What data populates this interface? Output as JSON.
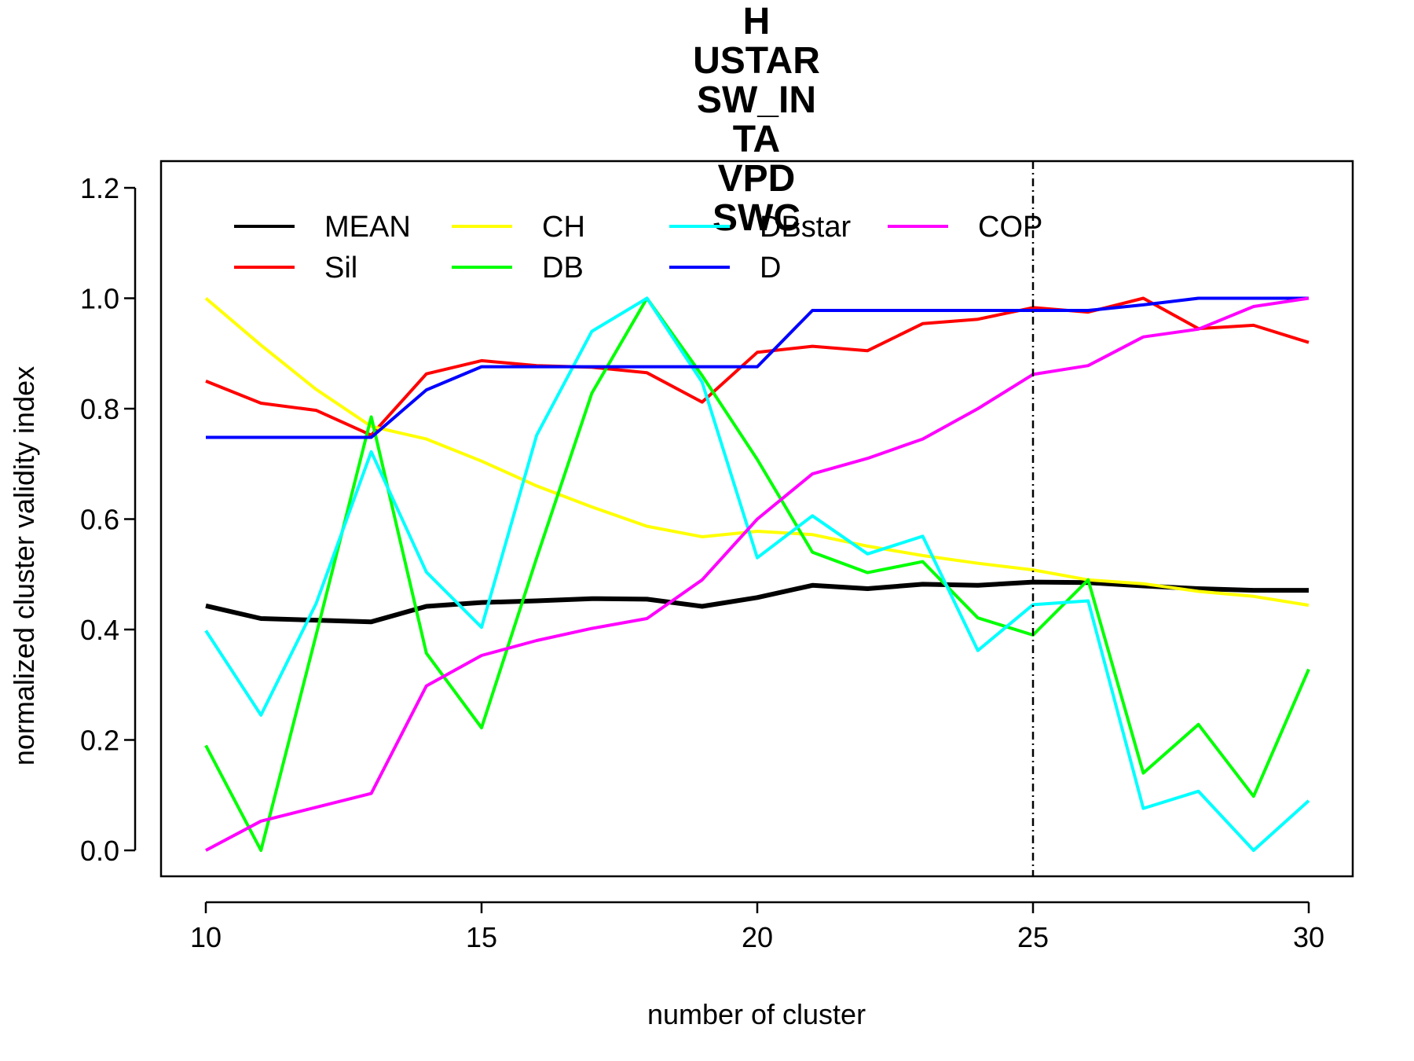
{
  "chart_data": {
    "type": "line",
    "title_lines": [
      "H",
      "USTAR",
      "SW_IN",
      "TA",
      "VPD",
      "SWC"
    ],
    "xlabel": "number of cluster",
    "ylabel": "normalized cluster validity index",
    "xlim": [
      10,
      30
    ],
    "ylim": [
      0,
      1.2
    ],
    "x_ticks": [
      10,
      15,
      20,
      25,
      30
    ],
    "x_tick_labels": [
      "10",
      "15",
      "20",
      "25",
      "30"
    ],
    "y_ticks": [
      0,
      0.2,
      0.4,
      0.6,
      0.8,
      1.0,
      1.2
    ],
    "y_tick_labels": [
      "0.0",
      "0.2",
      "0.4",
      "0.6",
      "0.8",
      "1.0",
      "1.2"
    ],
    "vline_x": 25,
    "legend_position": "top",
    "x": [
      10,
      11,
      12,
      13,
      14,
      15,
      16,
      17,
      18,
      19,
      20,
      21,
      22,
      23,
      24,
      25,
      26,
      27,
      28,
      29,
      30
    ],
    "series": [
      {
        "name": "MEAN",
        "color": "#000000",
        "width": 6,
        "values": [
          0.443,
          0.42,
          0.417,
          0.414,
          0.442,
          0.449,
          0.452,
          0.456,
          0.455,
          0.442,
          0.458,
          0.48,
          0.474,
          0.482,
          0.48,
          0.486,
          0.485,
          0.479,
          0.474,
          0.471,
          0.471
        ]
      },
      {
        "name": "Sil",
        "color": "#ff0000",
        "width": 4,
        "values": [
          0.85,
          0.81,
          0.797,
          0.752,
          0.863,
          0.887,
          0.878,
          0.875,
          0.865,
          0.812,
          0.902,
          0.913,
          0.905,
          0.954,
          0.962,
          0.983,
          0.975,
          1.0,
          0.945,
          0.951,
          0.92
        ]
      },
      {
        "name": "CH",
        "color": "#ffff00",
        "width": 4,
        "values": [
          1.0,
          0.915,
          0.835,
          0.768,
          0.745,
          0.705,
          0.66,
          0.622,
          0.587,
          0.568,
          0.578,
          0.572,
          0.551,
          0.534,
          0.52,
          0.508,
          0.49,
          0.483,
          0.469,
          0.46,
          0.444
        ]
      },
      {
        "name": "DB",
        "color": "#00ff00",
        "width": 4,
        "values": [
          0.19,
          0.0,
          0.39,
          0.785,
          0.357,
          0.222,
          0.53,
          0.828,
          1.0,
          0.86,
          0.708,
          0.54,
          0.503,
          0.523,
          0.421,
          0.39,
          0.49,
          0.14,
          0.228,
          0.098,
          0.328
        ]
      },
      {
        "name": "DBstar",
        "color": "#00ffff",
        "width": 4,
        "values": [
          0.398,
          0.245,
          0.447,
          0.722,
          0.504,
          0.404,
          0.752,
          0.94,
          1.0,
          0.848,
          0.53,
          0.606,
          0.537,
          0.569,
          0.362,
          0.445,
          0.452,
          0.076,
          0.107,
          0.0,
          0.09
        ]
      },
      {
        "name": "D",
        "color": "#0000ff",
        "width": 4,
        "values": [
          0.748,
          0.748,
          0.748,
          0.748,
          0.834,
          0.876,
          0.876,
          0.876,
          0.876,
          0.876,
          0.876,
          0.978,
          0.978,
          0.978,
          0.978,
          0.978,
          0.978,
          0.988,
          1.0,
          1.0,
          1.0
        ]
      },
      {
        "name": "COP",
        "color": "#ff00ff",
        "width": 4,
        "values": [
          0.0,
          0.053,
          0.078,
          0.103,
          0.298,
          0.353,
          0.38,
          0.402,
          0.42,
          0.49,
          0.6,
          0.682,
          0.71,
          0.745,
          0.8,
          0.862,
          0.878,
          0.93,
          0.944,
          0.985,
          1.0
        ]
      }
    ],
    "legend_order": [
      "MEAN",
      "Sil",
      "CH",
      "DB",
      "DBstar",
      "D",
      "COP"
    ]
  }
}
